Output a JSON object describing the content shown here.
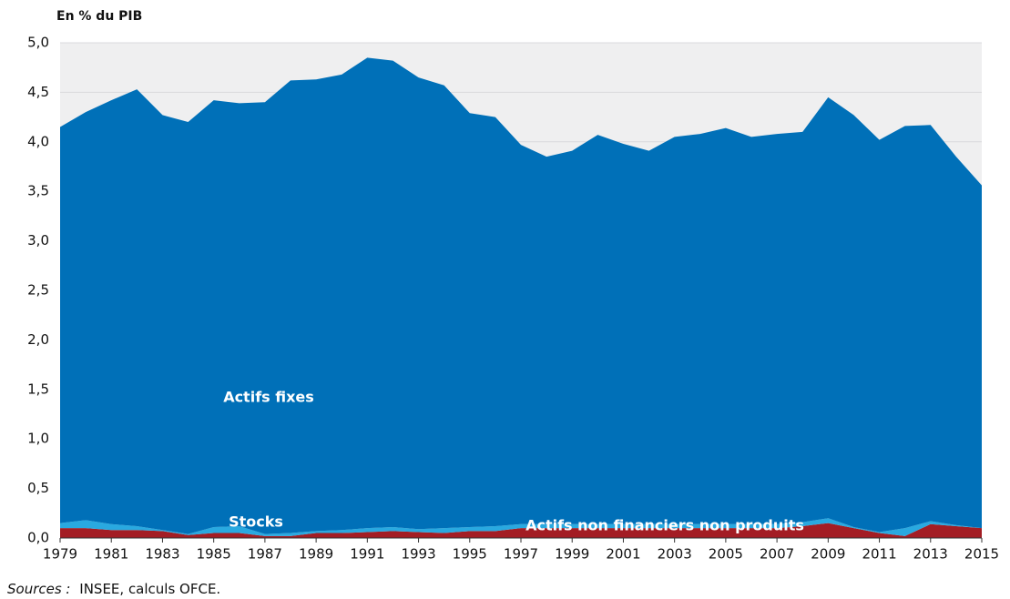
{
  "chart_data": {
    "type": "stacked_area",
    "y_label": "En % du PIB",
    "source_label": "Sources :",
    "source": "INSEE, calculs OFCE.",
    "x": [
      1979,
      1980,
      1981,
      1982,
      1983,
      1984,
      1985,
      1986,
      1987,
      1988,
      1989,
      1990,
      1991,
      1992,
      1993,
      1994,
      1995,
      1996,
      1997,
      1998,
      1999,
      2000,
      2001,
      2002,
      2003,
      2004,
      2005,
      2006,
      2007,
      2008,
      2009,
      2010,
      2011,
      2012,
      2013,
      2014,
      2015
    ],
    "xlim": [
      1979,
      2015
    ],
    "xticks": [
      1979,
      1981,
      1983,
      1985,
      1987,
      1989,
      1991,
      1993,
      1995,
      1997,
      1999,
      2001,
      2003,
      2005,
      2007,
      2009,
      2011,
      2013,
      2015
    ],
    "ylim": [
      0,
      5
    ],
    "yticks": [
      {
        "value": 0,
        "label": "0,0"
      },
      {
        "value": 0.5,
        "label": "0,5"
      },
      {
        "value": 1,
        "label": "1,0"
      },
      {
        "value": 1.5,
        "label": "1,5"
      },
      {
        "value": 2,
        "label": "2,0"
      },
      {
        "value": 2.5,
        "label": "2,5"
      },
      {
        "value": 3,
        "label": "3,0"
      },
      {
        "value": 3.5,
        "label": "3,5"
      },
      {
        "value": 4,
        "label": "4,0"
      },
      {
        "value": 4.5,
        "label": "4,5"
      },
      {
        "value": 5,
        "label": "5,0"
      }
    ],
    "grid": true,
    "series": [
      {
        "name": "Actifs non financiers non produits",
        "color": "#a31d24",
        "values": [
          0.1,
          0.1,
          0.08,
          0.08,
          0.07,
          0.03,
          0.05,
          0.05,
          0.02,
          0.02,
          0.05,
          0.05,
          0.06,
          0.07,
          0.06,
          0.05,
          0.07,
          0.07,
          0.1,
          0.1,
          0.1,
          0.1,
          0.1,
          0.1,
          0.1,
          0.1,
          0.1,
          0.1,
          0.1,
          0.12,
          0.15,
          0.1,
          0.05,
          0.02,
          0.14,
          0.12,
          0.1
        ]
      },
      {
        "name": "Stocks",
        "color": "#29a9e0",
        "values": [
          0.05,
          0.08,
          0.06,
          0.04,
          0.01,
          0.01,
          0.06,
          0.07,
          0.02,
          0.03,
          0.02,
          0.03,
          0.04,
          0.04,
          0.03,
          0.05,
          0.04,
          0.05,
          0.04,
          0.04,
          0.04,
          0.04,
          0.04,
          0.04,
          0.04,
          0.04,
          0.04,
          0.04,
          0.04,
          0.04,
          0.05,
          0.01,
          0.01,
          0.08,
          0.03,
          0.01,
          0
        ]
      },
      {
        "name": "Actifs fixes",
        "color": "#0070b8",
        "values": [
          4.0,
          4.12,
          4.28,
          4.41,
          4.19,
          4.16,
          4.31,
          4.27,
          4.36,
          4.57,
          4.56,
          4.6,
          4.75,
          4.71,
          4.56,
          4.47,
          4.18,
          4.13,
          3.83,
          3.71,
          3.77,
          3.93,
          3.84,
          3.77,
          3.91,
          3.94,
          4.0,
          3.91,
          3.94,
          3.94,
          4.25,
          4.16,
          3.96,
          4.06,
          4.0,
          3.72,
          3.46
        ]
      }
    ]
  }
}
